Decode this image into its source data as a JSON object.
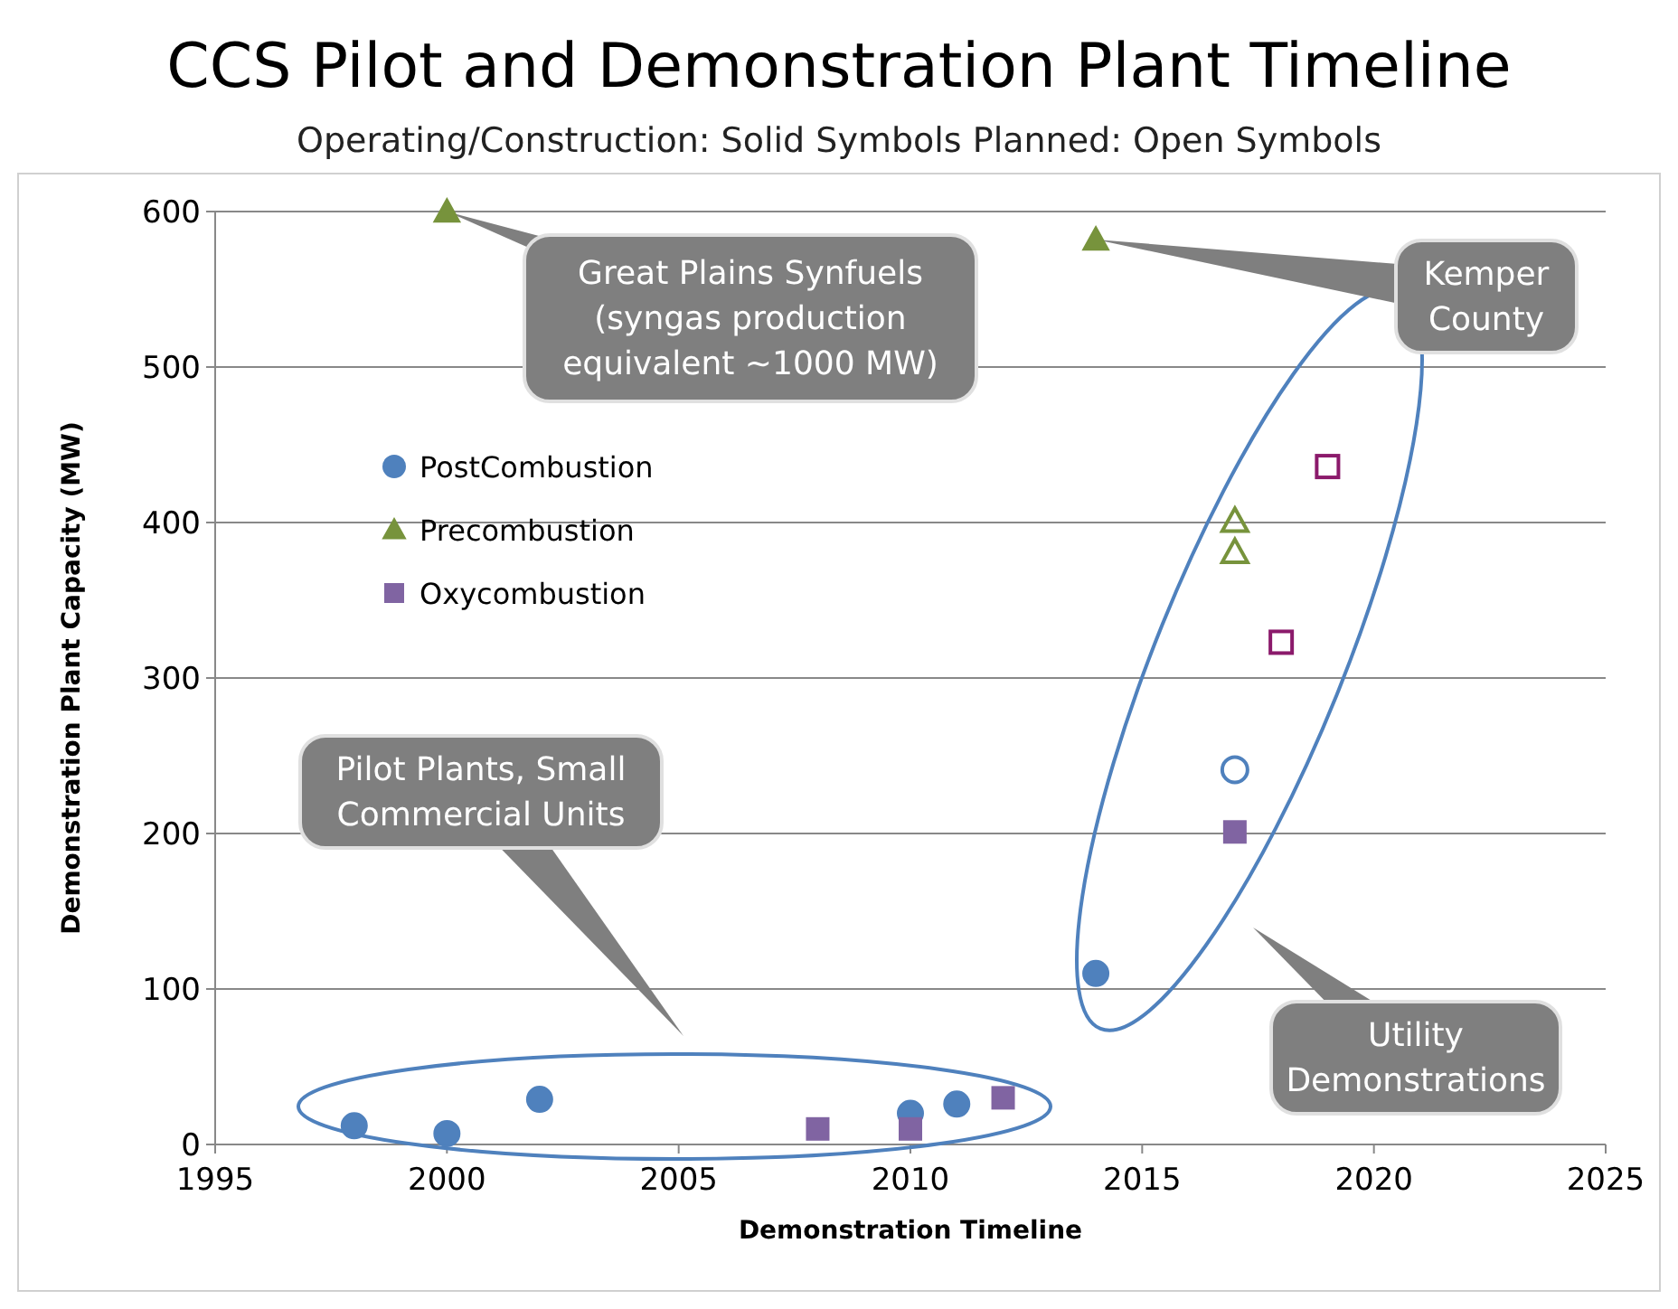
{
  "chart_data": {
    "type": "scatter",
    "title": "CCS Pilot and Demonstration Plant Timeline",
    "subtitle": "Operating/Construction: Solid Symbols    Planned: Open Symbols",
    "xlabel": "Demonstration Timeline",
    "ylabel": "Demonstration Plant  Capacity (MW)",
    "xlim": [
      1995,
      2025
    ],
    "xticks": [
      1995,
      2000,
      2005,
      2010,
      2015,
      2020,
      2025
    ],
    "ylim": [
      0,
      600
    ],
    "yticks": [
      0,
      100,
      200,
      300,
      400,
      500,
      600
    ],
    "grid": "y",
    "legend": "top left",
    "series": [
      {
        "name": "PostCombustion",
        "color": "#4f81bd",
        "marker": "circle",
        "x": [
          1998,
          2000,
          2002,
          2010,
          2011,
          2014
        ],
        "values": [
          12,
          7,
          29,
          20,
          26,
          110
        ]
      },
      {
        "name": "Precombustion",
        "color": "#77933c",
        "marker": "triangle",
        "x": [
          2000,
          2014
        ],
        "values": [
          600,
          582
        ]
      },
      {
        "name": "Oxycombustion",
        "color": "#8064a2",
        "marker": "square",
        "x": [
          2008,
          2010,
          2012,
          2017
        ],
        "values": [
          10,
          10,
          30,
          201
        ]
      },
      {
        "color": "#4f81bd",
        "marker": "circle",
        "x": [
          2017
        ],
        "values": [
          241
        ]
      },
      {
        "color": "#77933c",
        "marker": "triangle",
        "x": [
          2017,
          2017
        ],
        "values": [
          401,
          381
        ]
      },
      {
        "color": "#8b1a6b",
        "marker": "square",
        "x": [
          2018,
          2019
        ],
        "values": [
          323,
          436
        ]
      }
    ],
    "annotations": [
      {
        "text": "Great Plains Synfuels (syngas production equivalent ~1000 MW)",
        "x": 2000,
        "y": 600
      },
      {
        "text": "Kemper County",
        "x": 2014,
        "y": 582
      },
      "Pilot Plants, Small Commercial Units",
      "Utility Demonstrations"
    ]
  }
}
